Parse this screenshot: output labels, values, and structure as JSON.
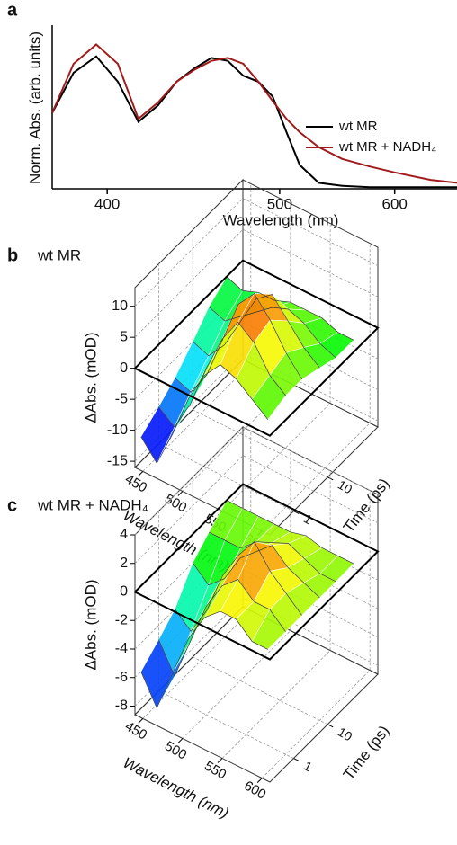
{
  "chart_data": [
    {
      "type": "line",
      "panel_label": "a",
      "xlabel": "Wavelength (nm)",
      "ylabel": "Norm. Abs. (arb. units)",
      "xscale": "reciprocal",
      "xlim": [
        376,
        673
      ],
      "xticks": [
        400,
        500,
        600
      ],
      "ylim": [
        0,
        1.1
      ],
      "x": [
        376,
        385,
        395,
        405,
        415,
        425,
        435,
        445,
        455,
        465,
        475,
        485,
        495,
        505,
        515,
        530,
        550,
        575,
        600,
        640,
        673
      ],
      "series": [
        {
          "name": "wt MR",
          "color": "#000000",
          "values": [
            0.51,
            0.78,
            0.89,
            0.72,
            0.45,
            0.56,
            0.72,
            0.81,
            0.88,
            0.86,
            0.76,
            0.72,
            0.62,
            0.38,
            0.16,
            0.04,
            0.02,
            0.01,
            0.01,
            0.01,
            0.01
          ]
        },
        {
          "name": "wt MR + NADH₄",
          "color": "#a01c1c",
          "values": [
            0.51,
            0.84,
            0.97,
            0.84,
            0.47,
            0.58,
            0.72,
            0.8,
            0.86,
            0.88,
            0.84,
            0.72,
            0.59,
            0.47,
            0.38,
            0.28,
            0.2,
            0.15,
            0.11,
            0.06,
            0.04
          ]
        }
      ]
    },
    {
      "type": "surface3d",
      "panel_label": "b",
      "title": "wt MR",
      "xlabel": "Wavelength (nm)",
      "ylabel": "Time (ps)",
      "zlabel": "ΔAbs. (mOD)",
      "xlim": [
        440,
        610
      ],
      "xticks": [
        450,
        500,
        550,
        600
      ],
      "tscale": "log",
      "tlim": [
        0.2,
        300
      ],
      "tticks": [
        1,
        10
      ],
      "zlim": [
        -16,
        13
      ],
      "zticks": [
        -15,
        -10,
        -5,
        0,
        5,
        10
      ],
      "wavelengths": [
        440,
        460,
        480,
        500,
        520,
        540,
        560,
        580,
        600
      ],
      "times": [
        0.3,
        1,
        3,
        10,
        30,
        100
      ],
      "z": [
        [
          -12,
          -15,
          -9,
          -2,
          3,
          6,
          5,
          3,
          1
        ],
        [
          -10,
          -12,
          -7,
          0,
          6,
          10,
          8,
          4,
          2
        ],
        [
          -8,
          -9,
          -5,
          2,
          9,
          12,
          9,
          5,
          2
        ],
        [
          -5,
          -6,
          -3,
          2,
          7,
          9,
          6,
          3,
          1
        ],
        [
          -2,
          -3,
          -1,
          1,
          3,
          4,
          3,
          1,
          0
        ],
        [
          0,
          -1,
          0,
          0,
          1,
          1,
          1,
          0,
          0
        ]
      ]
    },
    {
      "type": "surface3d",
      "panel_label": "c",
      "title": "wt MR + NADH₄",
      "xlabel": "Wavelength (nm)",
      "ylabel": "Time (ps)",
      "zlabel": "ΔAbs. (mOD)",
      "xlim": [
        440,
        610
      ],
      "xticks": [
        450,
        500,
        550,
        600
      ],
      "tscale": "log",
      "tlim": [
        0.2,
        300
      ],
      "tticks": [
        1,
        10
      ],
      "zlim": [
        -8.6,
        4
      ],
      "zticks": [
        -8,
        -6,
        -4,
        -2,
        0,
        2,
        4
      ],
      "wavelengths": [
        440,
        460,
        480,
        500,
        520,
        540,
        560,
        580,
        600
      ],
      "times": [
        0.3,
        1,
        3,
        10,
        30,
        100
      ],
      "z": [
        [
          -6,
          -8,
          -5,
          -2,
          0,
          1,
          1,
          0,
          0
        ],
        [
          -5,
          -7,
          -4,
          -1,
          1,
          2,
          1,
          1,
          0
        ],
        [
          -4,
          -5,
          -3,
          0,
          2,
          3.5,
          2,
          1,
          0
        ],
        [
          -2,
          -3,
          -2,
          0,
          1,
          2,
          1,
          0.5,
          0
        ],
        [
          -1,
          -1,
          -1,
          0,
          0.5,
          1,
          0.5,
          0,
          0
        ],
        [
          0,
          0,
          0,
          0,
          0,
          0.3,
          0,
          0,
          0
        ]
      ]
    }
  ]
}
